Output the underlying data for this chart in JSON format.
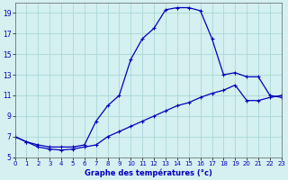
{
  "title": "Graphe des températures (°c)",
  "bg_color": "#d4f0f0",
  "line_color": "#0000bb",
  "grid_color": "#a8d8d8",
  "x_min": 0,
  "x_max": 23,
  "y_min": 5,
  "y_max": 20,
  "x_ticks": [
    0,
    1,
    2,
    3,
    4,
    5,
    6,
    7,
    8,
    9,
    10,
    11,
    12,
    13,
    14,
    15,
    16,
    17,
    18,
    19,
    20,
    21,
    22,
    23
  ],
  "y_ticks": [
    5,
    7,
    9,
    11,
    13,
    15,
    17,
    19
  ],
  "series1_x": [
    0,
    1,
    2,
    3,
    4,
    5,
    6,
    7,
    8,
    9,
    10,
    11,
    12,
    13,
    14,
    15,
    16,
    17,
    18,
    19,
    20,
    21,
    22,
    23
  ],
  "series1_y": [
    7.0,
    6.5,
    6.2,
    6.0,
    6.0,
    6.0,
    6.2,
    8.5,
    10.0,
    11.0,
    14.5,
    16.5,
    17.5,
    19.3,
    19.5,
    19.5,
    19.2,
    16.5,
    13.0,
    13.2,
    12.8,
    12.8,
    11.0,
    10.8
  ],
  "series2_x": [
    0,
    1,
    2,
    3,
    4,
    5,
    6,
    7,
    8,
    9,
    10,
    11,
    12,
    13,
    14,
    15,
    16,
    17,
    18,
    19,
    20,
    21,
    22,
    23
  ],
  "series2_y": [
    7.0,
    6.5,
    6.0,
    5.8,
    5.7,
    5.8,
    6.0,
    6.2,
    7.0,
    7.5,
    8.0,
    8.5,
    9.0,
    9.5,
    10.0,
    10.3,
    10.8,
    11.2,
    11.5,
    12.0,
    10.5,
    10.5,
    10.8,
    11.0
  ]
}
